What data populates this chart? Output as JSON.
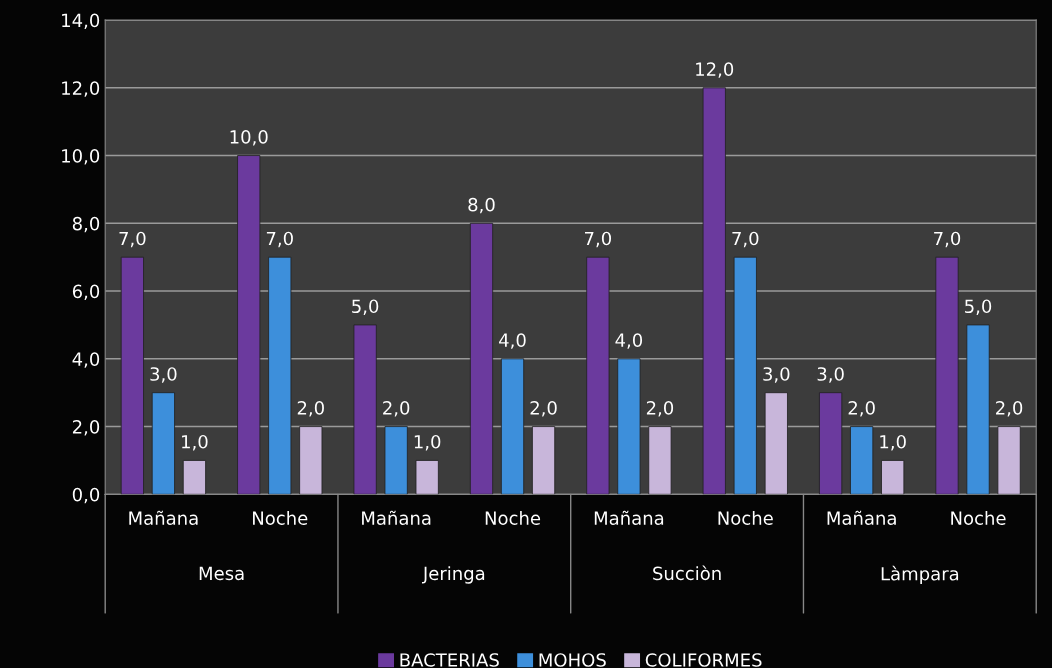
{
  "chart_data": {
    "type": "bar",
    "categories": [
      "Mañana",
      "Noche",
      "Mañana",
      "Noche",
      "Mañana",
      "Noche",
      "Mañana",
      "Noche"
    ],
    "annotations": [
      "Mesa",
      "Jeringa",
      "Succiòn",
      "Làmpara"
    ],
    "series": [
      {
        "name": "BACTERIAS",
        "color": "#6b3a9e",
        "values": [
          7,
          10,
          5,
          8,
          7,
          12,
          3,
          7
        ],
        "value_labels": [
          "7,0",
          "10,0",
          "5,0",
          "8,0",
          "7,0",
          "12,0",
          "3,0",
          "7,0"
        ]
      },
      {
        "name": "MOHOS",
        "color": "#3d8fdb",
        "values": [
          3,
          7,
          2,
          4,
          4,
          7,
          2,
          5
        ],
        "value_labels": [
          "3,0",
          "7,0",
          "2,0",
          "4,0",
          "4,0",
          "7,0",
          "2,0",
          "5,0"
        ]
      },
      {
        "name": "COLIFORMES",
        "color": "#c8b6da",
        "values": [
          1,
          2,
          1,
          2,
          2,
          3,
          1,
          2
        ],
        "value_labels": [
          "1,0",
          "2,0",
          "1,0",
          "2,0",
          "2,0",
          "3,0",
          "1,0",
          "2,0"
        ]
      }
    ],
    "ylim": [
      0,
      14
    ],
    "yticks": [
      {
        "value": 0,
        "label": "0,0"
      },
      {
        "value": 2,
        "label": "2,0"
      },
      {
        "value": 4,
        "label": "4,0"
      },
      {
        "value": 6,
        "label": "6,0"
      },
      {
        "value": 8,
        "label": "8,0"
      },
      {
        "value": 10,
        "label": "10,0"
      },
      {
        "value": 12,
        "label": "12,0"
      },
      {
        "value": 14,
        "label": "14,0"
      }
    ],
    "grid": "y",
    "legend": "bottom"
  }
}
